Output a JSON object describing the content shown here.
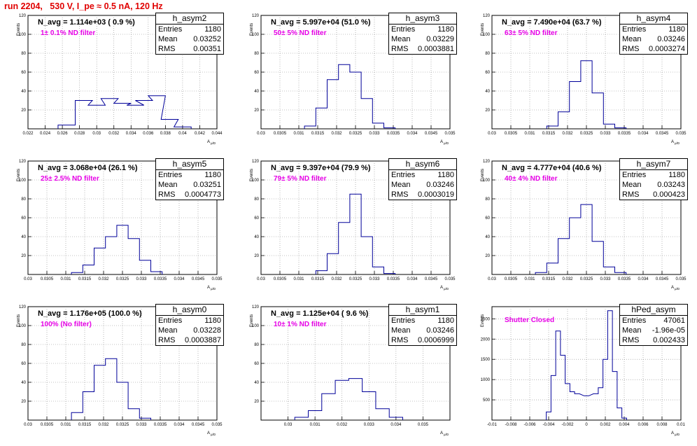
{
  "header": {
    "title": "run 2204,   530 V, I_pe ≈ 0.5 nA, 120 Hz"
  },
  "y_axis_label": "Events",
  "x_axis_label": "A",
  "x_axis_sub": "μ/D",
  "colors": {
    "hist": "#000099",
    "title": "#e00000",
    "filter": "#e600e6",
    "grid": "#888888"
  },
  "chart_data": [
    {
      "type": "bar",
      "name": "h_asym2",
      "stats": {
        "title": "h_asym2",
        "entries_label": "Entries",
        "entries": "1180",
        "mean_label": "Mean",
        "mean": "0.03252",
        "rms_label": "RMS",
        "rms": "0.00351"
      },
      "navg": "N_avg = 1.114e+03 ( 0.9 %)",
      "filter": "1± 0.1% ND filter",
      "xlim": [
        0.022,
        0.044
      ],
      "ylim": [
        0,
        120
      ],
      "xticks": [
        "0.022",
        "0.024",
        "0.026",
        "0.028",
        "0.03",
        "0.032",
        "0.034",
        "0.036",
        "0.038",
        "0.04",
        "0.042",
        "0.044"
      ],
      "yticks": [
        "20",
        "40",
        "60",
        "80",
        "100",
        "120"
      ],
      "x": [
        0.0265,
        0.0285,
        0.03,
        0.0315,
        0.033,
        0.0345,
        0.0355,
        0.037,
        0.0385,
        0.04
      ],
      "values": [
        4,
        30,
        25,
        32,
        27,
        25,
        30,
        35,
        10,
        2
      ]
    },
    {
      "type": "bar",
      "name": "h_asym3",
      "stats": {
        "title": "h_asym3",
        "entries_label": "Entries",
        "entries": "1180",
        "mean_label": "Mean",
        "mean": "0.03229",
        "rms_label": "RMS",
        "rms": "0.0003881"
      },
      "navg": "N_avg = 5.997e+04 (51.0 %)",
      "filter": "50± 5% ND filter",
      "xlim": [
        0.03,
        0.035
      ],
      "ylim": [
        0,
        120
      ],
      "xticks": [
        "0.03",
        "0.0305",
        "0.031",
        "0.0315",
        "0.032",
        "0.0325",
        "0.033",
        "0.0335",
        "0.034",
        "0.0345",
        "0.035"
      ],
      "yticks": [
        "20",
        "40",
        "60",
        "80",
        "100",
        "120"
      ],
      "x": [
        0.0313,
        0.0316,
        0.0319,
        0.0322,
        0.0325,
        0.0328,
        0.0331,
        0.0334
      ],
      "values": [
        3,
        22,
        52,
        68,
        60,
        32,
        6,
        1
      ]
    },
    {
      "type": "bar",
      "name": "h_asym4",
      "stats": {
        "title": "h_asym4",
        "entries_label": "Entries",
        "entries": "1180",
        "mean_label": "Mean",
        "mean": "0.03246",
        "rms_label": "RMS",
        "rms": "0.0003274"
      },
      "navg": "N_avg = 7.490e+04 (63.7 %)",
      "filter": "63± 5% ND filter",
      "xlim": [
        0.03,
        0.035
      ],
      "ylim": [
        0,
        120
      ],
      "xticks": [
        "0.03",
        "0.0305",
        "0.031",
        "0.0315",
        "0.032",
        "0.0325",
        "0.033",
        "0.0335",
        "0.034",
        "0.0345",
        "0.035"
      ],
      "yticks": [
        "20",
        "40",
        "60",
        "80",
        "100",
        "120"
      ],
      "x": [
        0.0316,
        0.0319,
        0.0322,
        0.0325,
        0.0328,
        0.0331,
        0.0334
      ],
      "values": [
        3,
        18,
        50,
        72,
        38,
        5,
        1
      ]
    },
    {
      "type": "bar",
      "name": "h_asym5",
      "stats": {
        "title": "h_asym5",
        "entries_label": "Entries",
        "entries": "1180",
        "mean_label": "Mean",
        "mean": "0.03251",
        "rms_label": "RMS",
        "rms": "0.0004773"
      },
      "navg": "N_avg = 3.068e+04 (26.1 %)",
      "filter": "25± 2.5% ND filter",
      "xlim": [
        0.03,
        0.035
      ],
      "ylim": [
        0,
        120
      ],
      "xticks": [
        "0.03",
        "0.0305",
        "0.031",
        "0.0315",
        "0.032",
        "0.0325",
        "0.033",
        "0.0335",
        "0.034",
        "0.0345",
        "0.035"
      ],
      "yticks": [
        "20",
        "40",
        "60",
        "80",
        "100",
        "120"
      ],
      "x": [
        0.0313,
        0.0316,
        0.0319,
        0.0322,
        0.0325,
        0.0328,
        0.0331,
        0.0334
      ],
      "values": [
        2,
        10,
        28,
        40,
        52,
        38,
        15,
        3
      ]
    },
    {
      "type": "bar",
      "name": "h_asym6",
      "stats": {
        "title": "h_asym6",
        "entries_label": "Entries",
        "entries": "1180",
        "mean_label": "Mean",
        "mean": "0.03246",
        "rms_label": "RMS",
        "rms": "0.0003019"
      },
      "navg": "N_avg = 9.397e+04 (79.9 %)",
      "filter": "79± 5% ND filter",
      "xlim": [
        0.03,
        0.035
      ],
      "ylim": [
        0,
        120
      ],
      "xticks": [
        "0.03",
        "0.0305",
        "0.031",
        "0.0315",
        "0.032",
        "0.0325",
        "0.033",
        "0.0335",
        "0.034",
        "0.0345",
        "0.035"
      ],
      "yticks": [
        "20",
        "40",
        "60",
        "80",
        "100",
        "120"
      ],
      "x": [
        0.0316,
        0.0319,
        0.0322,
        0.0325,
        0.0328,
        0.0331,
        0.0334
      ],
      "values": [
        4,
        22,
        55,
        85,
        40,
        8,
        1
      ]
    },
    {
      "type": "bar",
      "name": "h_asym7",
      "stats": {
        "title": "h_asym7",
        "entries_label": "Entries",
        "entries": "1180",
        "mean_label": "Mean",
        "mean": "0.03243",
        "rms_label": "RMS",
        "rms": "0.000423"
      },
      "navg": "N_avg = 4.777e+04 (40.6 %)",
      "filter": "40± 4% ND filter",
      "xlim": [
        0.03,
        0.035
      ],
      "ylim": [
        0,
        120
      ],
      "xticks": [
        "0.03",
        "0.0305",
        "0.031",
        "0.0315",
        "0.032",
        "0.0325",
        "0.033",
        "0.0335",
        "0.034",
        "0.0345",
        "0.035"
      ],
      "yticks": [
        "20",
        "40",
        "60",
        "80",
        "100",
        "120"
      ],
      "x": [
        0.0313,
        0.0316,
        0.0319,
        0.0322,
        0.0325,
        0.0328,
        0.0331,
        0.0334
      ],
      "values": [
        2,
        12,
        38,
        60,
        74,
        35,
        8,
        2
      ]
    },
    {
      "type": "bar",
      "name": "h_asym0",
      "stats": {
        "title": "h_asym0",
        "entries_label": "Entries",
        "entries": "1180",
        "mean_label": "Mean",
        "mean": "0.03228",
        "rms_label": "RMS",
        "rms": "0.0003887"
      },
      "navg": "N_avg = 1.176e+05 (100.0 %)",
      "filter": "100% (No filter)",
      "xlim": [
        0.03,
        0.035
      ],
      "ylim": [
        0,
        120
      ],
      "xticks": [
        "0.03",
        "0.0305",
        "0.031",
        "0.0315",
        "0.032",
        "0.0325",
        "0.033",
        "0.0335",
        "0.034",
        "0.0345",
        "0.035"
      ],
      "yticks": [
        "20",
        "40",
        "60",
        "80",
        "100",
        "120"
      ],
      "x": [
        0.0313,
        0.0316,
        0.0319,
        0.0322,
        0.0325,
        0.0328,
        0.0331
      ],
      "values": [
        8,
        30,
        58,
        65,
        40,
        12,
        2
      ]
    },
    {
      "type": "bar",
      "name": "h_asym1",
      "stats": {
        "title": "h_asym1",
        "entries_label": "Entries",
        "entries": "1180",
        "mean_label": "Mean",
        "mean": "0.03246",
        "rms_label": "RMS",
        "rms": "0.0006999"
      },
      "navg": "N_avg = 1.125e+04 ( 9.6 %)",
      "filter": "10± 1% ND filter",
      "xlim": [
        0.029,
        0.036
      ],
      "ylim": [
        0,
        120
      ],
      "xticks": [
        "0.03",
        "0.031",
        "0.032",
        "0.033",
        "0.034",
        "0.035"
      ],
      "yticks": [
        "20",
        "40",
        "60",
        "80",
        "100",
        "120"
      ],
      "x": [
        0.0305,
        0.031,
        0.0315,
        0.032,
        0.0325,
        0.033,
        0.0335,
        0.034
      ],
      "values": [
        3,
        10,
        28,
        42,
        44,
        30,
        12,
        3
      ]
    },
    {
      "type": "bar",
      "name": "hPed_asym",
      "stats": {
        "title": "hPed_asym",
        "entries_label": "Entries",
        "entries": "47061",
        "mean_label": "Mean",
        "mean": "-1.96e-05",
        "rms_label": "RMS",
        "rms": "0.002433"
      },
      "navg": "",
      "filter": "Shutter Closed",
      "xlim": [
        -0.01,
        0.01
      ],
      "ylim": [
        0,
        2800
      ],
      "xticks": [
        "-0.01",
        "-0.008",
        "-0.006",
        "-0.004",
        "-0.002",
        "0",
        "0.002",
        "0.004",
        "0.006",
        "0.008",
        "0.01"
      ],
      "yticks": [
        "500",
        "1000",
        "1500",
        "2000",
        "2500"
      ],
      "x": [
        -0.004,
        -0.0035,
        -0.003,
        -0.0025,
        -0.002,
        -0.0015,
        -0.001,
        0,
        0.001,
        0.0015,
        0.002,
        0.0025,
        0.003,
        0.0035,
        0.004
      ],
      "values": [
        200,
        1100,
        2200,
        1600,
        900,
        700,
        650,
        600,
        650,
        800,
        1500,
        2700,
        1200,
        300,
        50
      ]
    }
  ]
}
